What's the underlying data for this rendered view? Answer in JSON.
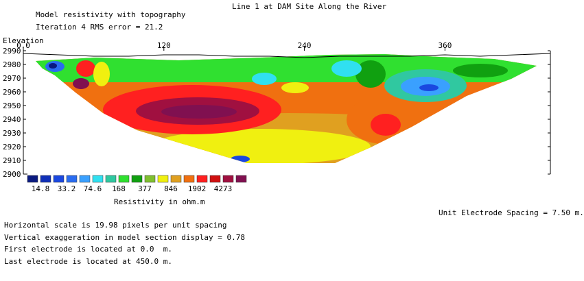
{
  "header": {
    "title": "Line 1 at DAM Site Along the River",
    "subtitle1": "Model resistivity with topography",
    "subtitle2": "Iteration 4 RMS error = 21.2"
  },
  "footer": {
    "spacing": "Unit Electrode Spacing = 7.50 m.",
    "notes": [
      "Horizontal scale is 19.98 pixels per unit spacing",
      "Vertical exaggeration in model section display = 0.78",
      "First electrode is located at 0.0  m.",
      "Last electrode is located at 450.0 m."
    ]
  },
  "chart_data": {
    "type": "heatmap",
    "title": "Line 1 at DAM Site Along the River",
    "ylabel": "Elevation",
    "x_ticks": [
      "0.0",
      "120",
      "240",
      "360"
    ],
    "x_tick_values": [
      0,
      120,
      240,
      360
    ],
    "xlim": [
      0,
      450
    ],
    "y_ticks": [
      "2990",
      "2980",
      "2970",
      "2960",
      "2950",
      "2940",
      "2930",
      "2920",
      "2910",
      "2900"
    ],
    "y_tick_values": [
      2990,
      2980,
      2970,
      2960,
      2950,
      2940,
      2930,
      2920,
      2910,
      2900
    ],
    "ylim": [
      2900,
      2990
    ],
    "colorbar": {
      "label": "Resistivity in ohm.m",
      "colors": [
        "#0a1a80",
        "#1030b8",
        "#1a48e0",
        "#2a6cf0",
        "#3aa0ff",
        "#30e0f0",
        "#30c8a0",
        "#30e030",
        "#10a010",
        "#80c030",
        "#f0f010",
        "#e0a020",
        "#f07010",
        "#ff2020",
        "#d01010",
        "#a01040",
        "#801050"
      ],
      "tick_labels": [
        "14.8",
        "33.2",
        "74.6",
        "168",
        "377",
        "846",
        "1902",
        "4273"
      ]
    },
    "topography": [
      [
        0,
        2988
      ],
      [
        30,
        2987
      ],
      [
        60,
        2986
      ],
      [
        90,
        2986
      ],
      [
        120,
        2987
      ],
      [
        150,
        2987
      ],
      [
        180,
        2986
      ],
      [
        210,
        2986
      ],
      [
        240,
        2985
      ],
      [
        270,
        2986
      ],
      [
        300,
        2986
      ],
      [
        330,
        2986
      ],
      [
        360,
        2987
      ],
      [
        390,
        2986
      ],
      [
        420,
        2987
      ],
      [
        450,
        2988
      ]
    ],
    "grid": false
  }
}
